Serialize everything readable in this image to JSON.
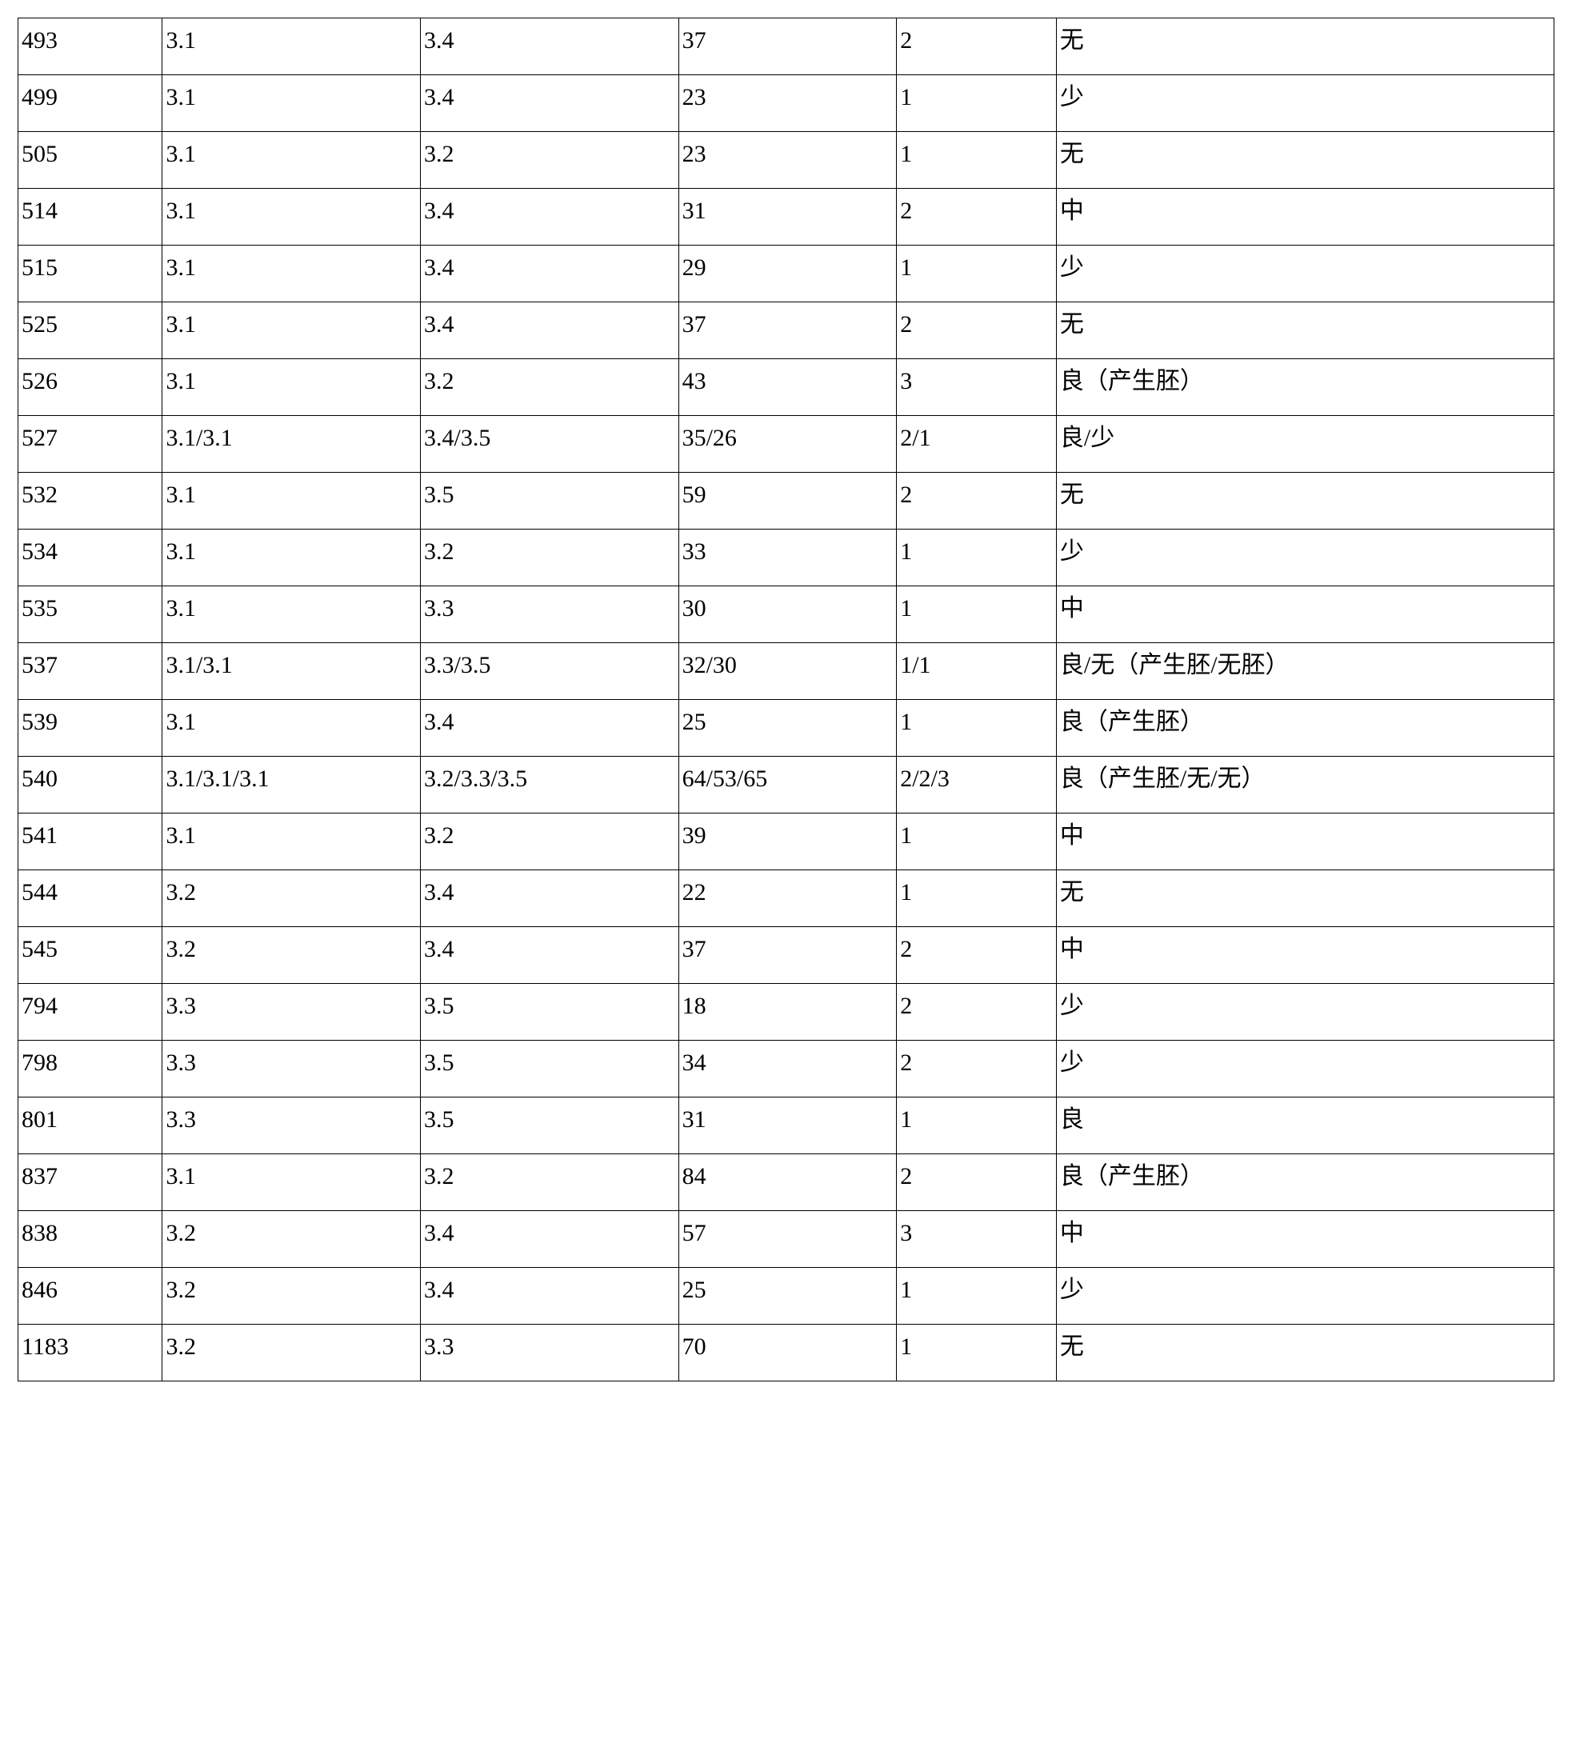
{
  "table": {
    "type": "table",
    "background_color": "#ffffff",
    "border_color": "#000000",
    "text_color": "#000000",
    "font_family": "SimSun",
    "font_size_pt": 22,
    "column_widths_pct": [
      9.4,
      16.8,
      16.8,
      14.2,
      10.4,
      32.4
    ],
    "columns": [
      "id",
      "val_a",
      "val_b",
      "count",
      "group",
      "status"
    ],
    "rows": [
      [
        "493",
        "3.1",
        "3.4",
        "37",
        "2",
        "无"
      ],
      [
        "499",
        "3.1",
        "3.4",
        "23",
        "1",
        "少"
      ],
      [
        "505",
        "3.1",
        "3.2",
        "23",
        "1",
        "无"
      ],
      [
        "514",
        "3.1",
        "3.4",
        "31",
        "2",
        "中"
      ],
      [
        "515",
        "3.1",
        "3.4",
        "29",
        "1",
        "少"
      ],
      [
        "525",
        "3.1",
        "3.4",
        "37",
        "2",
        "无"
      ],
      [
        "526",
        "3.1",
        "3.2",
        "43",
        "3",
        "良（产生胚）"
      ],
      [
        "527",
        "3.1/3.1",
        "3.4/3.5",
        "35/26",
        "2/1",
        "良/少"
      ],
      [
        "532",
        "3.1",
        "3.5",
        "59",
        "2",
        "无"
      ],
      [
        "534",
        "3.1",
        "3.2",
        "33",
        "1",
        "少"
      ],
      [
        "535",
        "3.1",
        "3.3",
        "30",
        "1",
        "中"
      ],
      [
        "537",
        "3.1/3.1",
        "3.3/3.5",
        "32/30",
        "1/1",
        "良/无（产生胚/无胚）"
      ],
      [
        "539",
        "3.1",
        "3.4",
        "25",
        "1",
        "良（产生胚）"
      ],
      [
        "540",
        "3.1/3.1/3.1",
        "3.2/3.3/3.5",
        "64/53/65",
        "2/2/3",
        "良（产生胚/无/无）"
      ],
      [
        "541",
        "3.1",
        "3.2",
        "39",
        "1",
        "中"
      ],
      [
        "544",
        "3.2",
        "3.4",
        "22",
        "1",
        "无"
      ],
      [
        "545",
        "3.2",
        "3.4",
        "37",
        "2",
        "中"
      ],
      [
        "794",
        "3.3",
        "3.5",
        "18",
        "2",
        "少"
      ],
      [
        "798",
        "3.3",
        "3.5",
        "34",
        "2",
        "少"
      ],
      [
        "801",
        "3.3",
        "3.5",
        "31",
        "1",
        "良"
      ],
      [
        "837",
        "3.1",
        "3.2",
        "84",
        "2",
        "良（产生胚）"
      ],
      [
        "838",
        "3.2",
        "3.4",
        "57",
        "3",
        "中"
      ],
      [
        "846",
        "3.2",
        "3.4",
        "25",
        "1",
        "少"
      ],
      [
        "1183",
        "3.2",
        "3.3",
        "70",
        "1",
        "无"
      ]
    ]
  }
}
